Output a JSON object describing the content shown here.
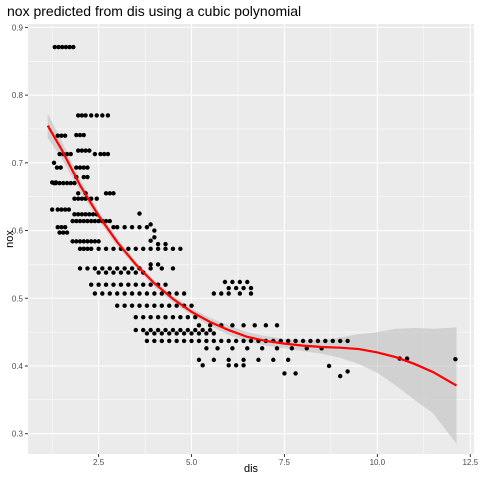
{
  "chart_data": {
    "type": "scatter",
    "title": "nox predicted from dis using a cubic polynomial",
    "xlabel": "dis",
    "ylabel": "nox",
    "xlim": [
      0.6,
      12.6
    ],
    "ylim": [
      0.27,
      0.905
    ],
    "x_ticks": [
      2.5,
      5.0,
      7.5,
      10.0,
      12.5
    ],
    "x_tick_labels": [
      "2.5",
      "5.0",
      "7.5",
      "10.0",
      "12.5"
    ],
    "y_ticks": [
      0.3,
      0.4,
      0.5,
      0.6,
      0.7,
      0.8,
      0.9
    ],
    "y_tick_labels": [
      "0.3",
      "0.4",
      "0.5",
      "0.6",
      "0.7",
      "0.8",
      "0.9"
    ],
    "panel_background": "#ebebeb",
    "grid_color": "#ffffff",
    "point_color": "#000000",
    "fit_color": "#ff0000",
    "ribbon_color": "#bfbfbf",
    "points": {
      "x": [
        1.32,
        1.42,
        1.52,
        1.62,
        1.72,
        1.82,
        1.3,
        1.35,
        1.45,
        1.55,
        1.65,
        1.75,
        1.85,
        1.25,
        1.4,
        1.5,
        1.6,
        1.7,
        1.4,
        1.5,
        1.6,
        1.45,
        1.55,
        1.65,
        1.38,
        1.48,
        1.3,
        1.25,
        1.35,
        1.45,
        1.55,
        1.65,
        1.75,
        1.4,
        1.5,
        1.6,
        1.95,
        2.05,
        2.15,
        2.3,
        2.45,
        2.6,
        2.75,
        1.9,
        2.0,
        2.1,
        1.95,
        2.05,
        2.15,
        2.25,
        2.4,
        2.55,
        2.65,
        2.75,
        1.9,
        2.0,
        2.1,
        2.2,
        1.9,
        2.1,
        2.2,
        1.95,
        2.15,
        2.7,
        2.8,
        2.9,
        1.85,
        1.95,
        2.05,
        2.15,
        2.3,
        2.45,
        1.85,
        1.95,
        2.05,
        2.15,
        2.25,
        2.35,
        2.45,
        1.8,
        1.9,
        2.0,
        2.1,
        2.2,
        2.3,
        2.4,
        2.5,
        2.6,
        2.7,
        2.8,
        2.9,
        3.0,
        3.2,
        3.4,
        3.6,
        3.8,
        1.8,
        1.9,
        2.0,
        2.1,
        2.2,
        2.3,
        2.4,
        2.5,
        2.0,
        2.1,
        2.2,
        2.3,
        2.5,
        2.7,
        2.9,
        3.1,
        3.3,
        3.5,
        3.7,
        3.9,
        4.1,
        4.3,
        4.5,
        4.7,
        2.0,
        2.2,
        2.4,
        2.6,
        2.8,
        3.0,
        3.2,
        3.4,
        3.6,
        3.9,
        4.2,
        4.5,
        2.5,
        2.7,
        2.9,
        3.1,
        3.3,
        3.5,
        3.7,
        2.3,
        2.5,
        2.7,
        2.9,
        3.1,
        3.3,
        3.5,
        3.7,
        3.9,
        4.1,
        4.3,
        2.4,
        2.6,
        2.8,
        3.0,
        3.2,
        3.4,
        3.6,
        3.8,
        4.0,
        4.2,
        4.4,
        4.6,
        4.8,
        3.0,
        3.2,
        3.4,
        3.6,
        3.8,
        4.0,
        4.2,
        4.4,
        4.6,
        4.8,
        5.0,
        3.5,
        3.7,
        3.9,
        4.1,
        4.3,
        4.5,
        4.7,
        4.9,
        5.1,
        3.5,
        3.7,
        3.9,
        4.1,
        4.3,
        4.5,
        4.7,
        4.9,
        5.1,
        5.3,
        5.5,
        3.8,
        4.0,
        4.2,
        4.4,
        4.6,
        4.8,
        5.0,
        5.2,
        5.4,
        5.6,
        3.8,
        4.0,
        4.2,
        4.4,
        4.6,
        4.8,
        5.0,
        5.2,
        5.4,
        5.6,
        5.8,
        6.0,
        6.2,
        6.4,
        6.6,
        6.8,
        7.0,
        7.2,
        7.4,
        7.6,
        7.8,
        8.0,
        8.2,
        8.4,
        8.6,
        8.8,
        9.0,
        9.2,
        9.0,
        9.2,
        10.6,
        10.8,
        12.1,
        5.9,
        6.1,
        6.3,
        6.5,
        6.0,
        6.2,
        6.4,
        6.6,
        5.6,
        5.8,
        6.0,
        6.3,
        6.6,
        5.2,
        5.5,
        5.8,
        6.1,
        6.4,
        6.7,
        7.0,
        7.3,
        5.4,
        5.7,
        6.1,
        6.5,
        6.9,
        7.3,
        7.7,
        8.1,
        8.5,
        5.2,
        5.6,
        6.0,
        6.4,
        6.8,
        7.2,
        7.6,
        5.3,
        6.0,
        6.2,
        6.4,
        7.5,
        7.8,
        8.7,
        3.6,
        3.9,
        4.1,
        3.9,
        4.0,
        4.3,
        4.0,
        3.9,
        4.1
      ],
      "y": [
        0.871,
        0.871,
        0.871,
        0.871,
        0.871,
        0.871,
        0.67,
        0.67,
        0.67,
        0.67,
        0.67,
        0.67,
        0.67,
        0.631,
        0.631,
        0.631,
        0.631,
        0.631,
        0.605,
        0.605,
        0.605,
        0.597,
        0.597,
        0.597,
        0.693,
        0.693,
        0.7,
        0.671,
        0.671,
        0.713,
        0.713,
        0.713,
        0.713,
        0.74,
        0.74,
        0.74,
        0.77,
        0.77,
        0.77,
        0.77,
        0.77,
        0.77,
        0.77,
        0.741,
        0.741,
        0.741,
        0.718,
        0.718,
        0.718,
        0.718,
        0.713,
        0.713,
        0.713,
        0.713,
        0.693,
        0.693,
        0.693,
        0.693,
        0.679,
        0.679,
        0.679,
        0.655,
        0.655,
        0.655,
        0.655,
        0.655,
        0.647,
        0.647,
        0.647,
        0.647,
        0.647,
        0.647,
        0.624,
        0.624,
        0.624,
        0.624,
        0.624,
        0.624,
        0.624,
        0.614,
        0.614,
        0.614,
        0.614,
        0.614,
        0.614,
        0.614,
        0.614,
        0.614,
        0.614,
        0.614,
        0.605,
        0.605,
        0.605,
        0.605,
        0.605,
        0.605,
        0.584,
        0.584,
        0.584,
        0.584,
        0.584,
        0.584,
        0.584,
        0.584,
        0.573,
        0.573,
        0.573,
        0.573,
        0.573,
        0.573,
        0.573,
        0.573,
        0.573,
        0.573,
        0.573,
        0.573,
        0.573,
        0.573,
        0.573,
        0.573,
        0.544,
        0.544,
        0.544,
        0.544,
        0.544,
        0.544,
        0.544,
        0.544,
        0.544,
        0.544,
        0.544,
        0.544,
        0.538,
        0.538,
        0.538,
        0.538,
        0.538,
        0.538,
        0.538,
        0.52,
        0.52,
        0.52,
        0.52,
        0.52,
        0.52,
        0.52,
        0.52,
        0.52,
        0.52,
        0.52,
        0.507,
        0.507,
        0.507,
        0.507,
        0.507,
        0.507,
        0.507,
        0.507,
        0.507,
        0.507,
        0.507,
        0.507,
        0.507,
        0.489,
        0.489,
        0.489,
        0.489,
        0.489,
        0.489,
        0.489,
        0.489,
        0.489,
        0.489,
        0.489,
        0.472,
        0.472,
        0.472,
        0.472,
        0.472,
        0.472,
        0.472,
        0.472,
        0.472,
        0.453,
        0.453,
        0.453,
        0.453,
        0.453,
        0.453,
        0.453,
        0.453,
        0.453,
        0.453,
        0.453,
        0.448,
        0.448,
        0.448,
        0.448,
        0.448,
        0.448,
        0.448,
        0.448,
        0.448,
        0.448,
        0.437,
        0.437,
        0.437,
        0.437,
        0.437,
        0.437,
        0.437,
        0.437,
        0.437,
        0.437,
        0.437,
        0.437,
        0.437,
        0.437,
        0.437,
        0.437,
        0.437,
        0.437,
        0.437,
        0.437,
        0.437,
        0.437,
        0.437,
        0.437,
        0.437,
        0.437,
        0.437,
        0.437,
        0.385,
        0.392,
        0.411,
        0.411,
        0.41,
        0.524,
        0.524,
        0.524,
        0.524,
        0.515,
        0.515,
        0.515,
        0.515,
        0.507,
        0.507,
        0.507,
        0.507,
        0.507,
        0.46,
        0.46,
        0.46,
        0.46,
        0.46,
        0.46,
        0.46,
        0.46,
        0.426,
        0.426,
        0.426,
        0.426,
        0.426,
        0.426,
        0.426,
        0.426,
        0.426,
        0.409,
        0.409,
        0.409,
        0.409,
        0.409,
        0.409,
        0.409,
        0.401,
        0.401,
        0.401,
        0.401,
        0.389,
        0.389,
        0.4,
        0.625,
        0.585,
        0.58,
        0.609,
        0.6,
        0.58,
        0.59,
        0.55,
        0.55
      ]
    },
    "fit_curve": {
      "x": [
        1.13,
        1.5,
        2.0,
        2.5,
        3.0,
        3.5,
        4.0,
        4.5,
        5.0,
        5.5,
        6.0,
        6.5,
        7.0,
        7.5,
        8.0,
        8.5,
        9.0,
        9.5,
        10.0,
        10.5,
        11.0,
        11.5,
        12.13
      ],
      "y": [
        0.755,
        0.72,
        0.667,
        0.622,
        0.583,
        0.55,
        0.522,
        0.499,
        0.48,
        0.465,
        0.453,
        0.443,
        0.437,
        0.433,
        0.43,
        0.428,
        0.427,
        0.425,
        0.42,
        0.413,
        0.403,
        0.391,
        0.371
      ],
      "lower": [
        0.737,
        0.707,
        0.658,
        0.615,
        0.577,
        0.545,
        0.517,
        0.494,
        0.475,
        0.459,
        0.446,
        0.436,
        0.43,
        0.426,
        0.422,
        0.418,
        0.412,
        0.403,
        0.39,
        0.371,
        0.35,
        0.33,
        0.285
      ],
      "upper": [
        0.773,
        0.733,
        0.676,
        0.629,
        0.589,
        0.555,
        0.527,
        0.504,
        0.485,
        0.471,
        0.46,
        0.45,
        0.444,
        0.44,
        0.438,
        0.438,
        0.442,
        0.447,
        0.45,
        0.455,
        0.456,
        0.455,
        0.457
      ]
    }
  }
}
